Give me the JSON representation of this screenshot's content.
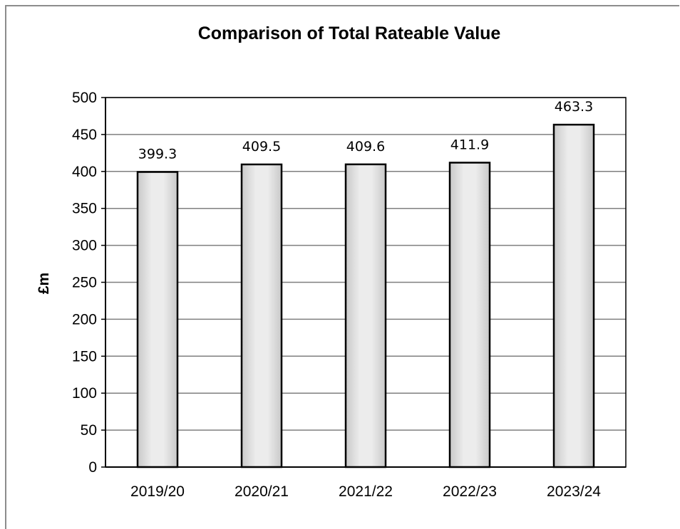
{
  "chart_data": {
    "type": "bar",
    "title": "Comparison of Total Rateable Value",
    "ylabel": "£m",
    "xlabel": "",
    "categories": [
      "2019/20",
      "2020/21",
      "2021/22",
      "2022/23",
      "2023/24"
    ],
    "values": [
      399.3,
      409.5,
      409.6,
      411.9,
      463.3
    ],
    "data_labels": [
      "399.3",
      "409.5",
      "409.6",
      "411.9",
      "463.3"
    ],
    "ylim": [
      0,
      500
    ],
    "yticks": [
      0,
      50,
      100,
      150,
      200,
      250,
      300,
      350,
      400,
      450,
      500
    ],
    "grid": true,
    "legend": "none",
    "colors": {
      "bar_fill": "#e6e6e6",
      "bar_stroke": "#000000",
      "grid": "#7f7f7f"
    }
  }
}
